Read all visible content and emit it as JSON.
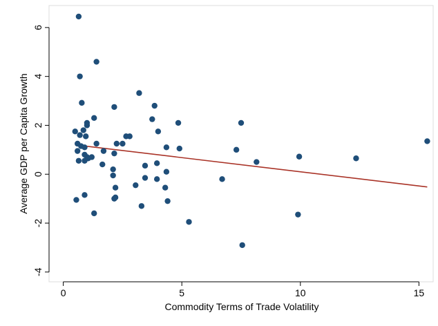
{
  "chart_data": {
    "type": "scatter",
    "xlabel": "Commodity Terms of Trade Volatility",
    "ylabel": "Average GDP per Capita Growth",
    "xlim": [
      -0.6,
      15.6
    ],
    "ylim": [
      -4.4,
      6.9
    ],
    "x_ticks": [
      0,
      5,
      10,
      15
    ],
    "y_ticks": [
      -4,
      -2,
      0,
      2,
      4,
      6
    ],
    "grid": false,
    "legend": "none",
    "colors": {
      "points": "#1f4e79",
      "fit_line": "#a93226",
      "axis": "#000000",
      "background": "#ffffff"
    },
    "series": [
      {
        "kind": "points",
        "x": [
          0.65,
          0.7,
          0.78,
          1.4,
          0.5,
          0.6,
          0.7,
          0.85,
          0.95,
          1.0,
          1.3,
          0.6,
          0.75,
          0.9,
          1.0,
          1.4,
          0.65,
          0.9,
          1.05,
          1.2,
          1.0,
          0.9,
          1.7,
          1.65,
          2.1,
          2.15,
          2.25,
          2.5,
          2.65,
          2.8,
          2.15,
          2.2,
          2.1,
          2.2,
          2.15,
          3.05,
          3.2,
          3.3,
          3.45,
          3.45,
          3.75,
          3.85,
          3.95,
          4.0,
          3.95,
          4.35,
          4.35,
          4.4,
          4.3,
          4.85,
          4.9,
          5.3,
          6.7,
          7.3,
          7.55,
          7.5,
          8.15,
          9.95,
          9.9,
          12.35,
          15.35,
          1.3,
          0.9,
          0.55
        ],
        "y": [
          6.45,
          4.0,
          2.92,
          4.6,
          1.75,
          1.25,
          1.6,
          1.8,
          1.55,
          2.0,
          2.3,
          0.95,
          1.15,
          0.8,
          0.7,
          1.25,
          0.55,
          0.55,
          0.65,
          0.7,
          2.1,
          1.1,
          0.95,
          0.4,
          0.2,
          0.85,
          1.25,
          1.25,
          1.55,
          1.55,
          2.75,
          -0.55,
          -0.05,
          -0.95,
          -1.0,
          -0.45,
          3.32,
          -1.3,
          -0.15,
          0.35,
          2.25,
          2.8,
          0.45,
          1.75,
          -0.2,
          1.1,
          0.1,
          -1.1,
          -0.55,
          2.1,
          1.05,
          -1.95,
          -0.2,
          1.0,
          -2.9,
          2.1,
          0.5,
          0.72,
          -1.65,
          0.65,
          1.35,
          -1.6,
          -0.85,
          -1.05
        ]
      },
      {
        "kind": "fitted_line",
        "x": [
          0.5,
          15.35
        ],
        "y": [
          1.2,
          -0.52
        ]
      }
    ]
  }
}
